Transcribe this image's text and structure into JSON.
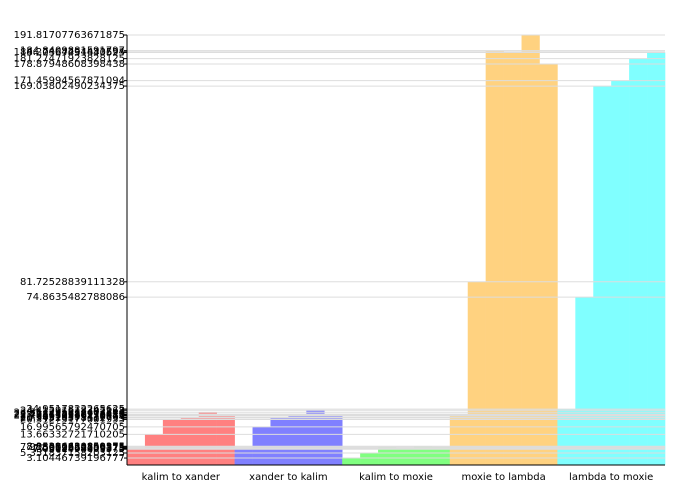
{
  "chart_data": {
    "type": "bar",
    "categories": [
      "kalim to xander",
      "xander to kalim",
      "kalim to moxie",
      "moxie to lambda",
      "lambda to moxie"
    ],
    "colors": [
      "#ff8080",
      "#8080ff",
      "#80ff80",
      "#ffd280",
      "#80ffff"
    ],
    "values": [
      [
        7.382568359375,
        13.66332721710205,
        20.31275177001953,
        20.94520378112793,
        23.517295837402344,
        22.135570526123047
      ],
      [
        7.0511474609375,
        16.99565792470705,
        21.36215591430664,
        22.04637336730957,
        24.41291618347168,
        22.718448638916016
      ],
      [
        3.10446739196777,
        5.351837158203125,
        7.95062255859375,
        7.5003662109375,
        8.35296630859375,
        7.918670654296875
      ],
      [
        22.495712280273438,
        81.72528839111328,
        184.8409881591797,
        184.27464294433594,
        191.81707763671875,
        178.87948608398438
      ],
      [
        24.9517822265625,
        74.8635482788086,
        169.03802490234375,
        171.45994567871094,
        181.27471923828125,
        184.0367431640625
      ]
    ],
    "ylim": [
      0,
      191.81707763671875
    ],
    "yticks": [
      3.10446739196777,
      5.351837158203125,
      7.0511474609375,
      7.382568359375,
      7.5003662109375,
      7.918670654296875,
      7.95062255859375,
      8.35296630859375,
      13.66332721710205,
      16.99565792470705,
      20.31275177001953,
      20.94520378112793,
      21.36215591430664,
      22.04637336730957,
      22.135570526123047,
      22.495712280273438,
      22.718448638916016,
      23.517295837402344,
      24.41291618347168,
      24.9517822265625,
      74.8635482788086,
      81.72528839111328,
      169.03802490234375,
      171.45994567871094,
      178.87948608398438,
      181.27471923828125,
      184.0367431640625,
      184.27464294433594,
      184.8409881591797,
      191.81707763671875
    ],
    "grid": true
  }
}
